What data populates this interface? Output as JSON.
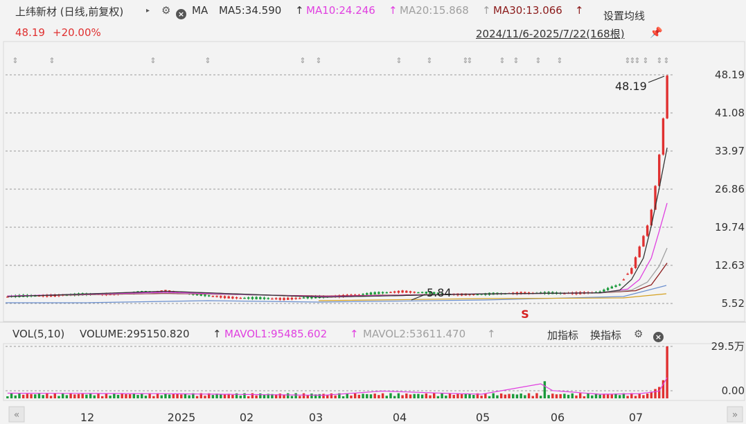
{
  "header": {
    "stock_title": "上纬新材 (日线,前复权)",
    "indicator_name": "MA",
    "ma5": "MA5:34.590",
    "ma10": "MA10:24.246",
    "ma20": "MA20:15.868",
    "ma30": "MA30:13.066",
    "arrow": "↑",
    "settings_label": "设置均线"
  },
  "sub": {
    "price": "48.19",
    "change_pct": "+20.00%",
    "range": "2024/11/6-2025/7/22(168根)"
  },
  "colors": {
    "ma5": "#333333",
    "ma10": "#e040e0",
    "ma20": "#a0a0a0",
    "ma30": "#8b1a1a",
    "up": "#e03030",
    "down": "#1a9a3a",
    "grid": "#9a9a9a"
  },
  "volume_header": {
    "title": "VOL(5,10)",
    "volume": "VOLUME:295150.820",
    "mavol1": "MAVOL1:95485.602",
    "mavol2": "MAVOL2:53611.470",
    "arrow": "↑",
    "add_indicator": "加指标",
    "switch_indicator": "换指标"
  },
  "chart_data": {
    "type": "candlestick",
    "price_axis": {
      "ticks": [
        "48.19",
        "41.08",
        "33.97",
        "26.86",
        "19.74",
        "12.63",
        "5.52"
      ],
      "ylim": [
        5.52,
        48.19
      ]
    },
    "volume_axis": {
      "ticks": [
        "29.5万",
        "0.00"
      ]
    },
    "x_ticks": [
      "12",
      "2025",
      "02",
      "03",
      "04",
      "05",
      "06",
      "07"
    ],
    "annotations": {
      "high_label": "48.19",
      "low_label": "5.84",
      "marker": "S"
    },
    "series": {
      "price_trend": [
        [
          0,
          6.8
        ],
        [
          10,
          7.0
        ],
        [
          20,
          7.2
        ],
        [
          30,
          7.4
        ],
        [
          40,
          7.9
        ],
        [
          50,
          7.0
        ],
        [
          60,
          6.5
        ],
        [
          70,
          6.4
        ],
        [
          80,
          6.7
        ],
        [
          90,
          7.2
        ],
        [
          100,
          7.8
        ],
        [
          110,
          7.3
        ],
        [
          120,
          7.2
        ],
        [
          130,
          7.5
        ],
        [
          140,
          7.4
        ],
        [
          150,
          7.6
        ],
        [
          155,
          9.0
        ],
        [
          158,
          12
        ],
        [
          160,
          16
        ],
        [
          162,
          20
        ],
        [
          163,
          23
        ],
        [
          164,
          27.5
        ],
        [
          165,
          33.4
        ],
        [
          166,
          40.2
        ],
        [
          167,
          48.19
        ]
      ],
      "ma5": [
        [
          0,
          6.8
        ],
        [
          40,
          7.8
        ],
        [
          80,
          6.7
        ],
        [
          120,
          7.3
        ],
        [
          150,
          7.5
        ],
        [
          155,
          8.0
        ],
        [
          158,
          10
        ],
        [
          161,
          14
        ],
        [
          163,
          20
        ],
        [
          165,
          27
        ],
        [
          167,
          34.59
        ]
      ],
      "ma10": [
        [
          0,
          6.9
        ],
        [
          40,
          7.6
        ],
        [
          80,
          6.8
        ],
        [
          120,
          7.3
        ],
        [
          150,
          7.5
        ],
        [
          157,
          8.2
        ],
        [
          160,
          10
        ],
        [
          163,
          14
        ],
        [
          165,
          19
        ],
        [
          167,
          24.25
        ]
      ],
      "ma20": [
        [
          0,
          6.9
        ],
        [
          40,
          7.5
        ],
        [
          80,
          6.8
        ],
        [
          120,
          7.3
        ],
        [
          150,
          7.5
        ],
        [
          158,
          8.0
        ],
        [
          162,
          9.5
        ],
        [
          165,
          12.5
        ],
        [
          167,
          15.87
        ]
      ],
      "ma30": [
        [
          0,
          6.9
        ],
        [
          40,
          7.4
        ],
        [
          80,
          6.9
        ],
        [
          120,
          7.3
        ],
        [
          150,
          7.5
        ],
        [
          159,
          7.9
        ],
        [
          163,
          9.0
        ],
        [
          165,
          11
        ],
        [
          167,
          13.07
        ]
      ],
      "mavol": [
        [
          0,
          0.1
        ],
        [
          40,
          0.09
        ],
        [
          80,
          0.06
        ],
        [
          95,
          0.14
        ],
        [
          110,
          0.1
        ],
        [
          120,
          0.08
        ],
        [
          135,
          0.28
        ],
        [
          138,
          0.15
        ],
        [
          150,
          0.08
        ],
        [
          160,
          0.09
        ],
        [
          165,
          0.14
        ],
        [
          167,
          0.4
        ]
      ]
    }
  }
}
